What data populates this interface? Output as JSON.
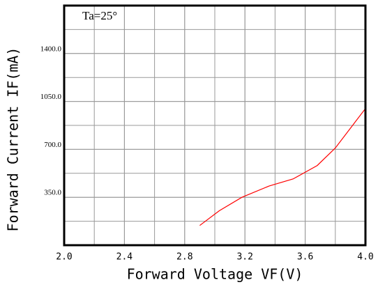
{
  "chart_data": {
    "type": "line",
    "annotation": "Ta=25°",
    "x_label": "Forward Voltage VF(V)",
    "y_label": "Forward Current IF(mA)",
    "x": [
      2.9,
      3.03,
      3.18,
      3.36,
      3.52,
      3.68,
      3.8,
      4.0
    ],
    "series": [
      {
        "name": "IF",
        "color": "#ff0000",
        "values": [
          144,
          252,
          350,
          432,
          484,
          582,
          710,
          998
        ]
      }
    ],
    "xlim": [
      2.0,
      4.0
    ],
    "xticks": [
      {
        "value": 2.0,
        "label": "2.0"
      },
      2.4,
      2.8,
      3.2,
      3.6,
      {
        "value": 4.0,
        "label": "4.0"
      }
    ],
    "ylim": [
      0,
      1750
    ],
    "yticks": [
      {
        "value": 350,
        "label": "350.0"
      },
      {
        "value": 700,
        "label": "700.0"
      },
      {
        "value": 1050,
        "label": "1050.0"
      },
      {
        "value": 1400,
        "label": "1400.0"
      }
    ],
    "grid": true
  }
}
